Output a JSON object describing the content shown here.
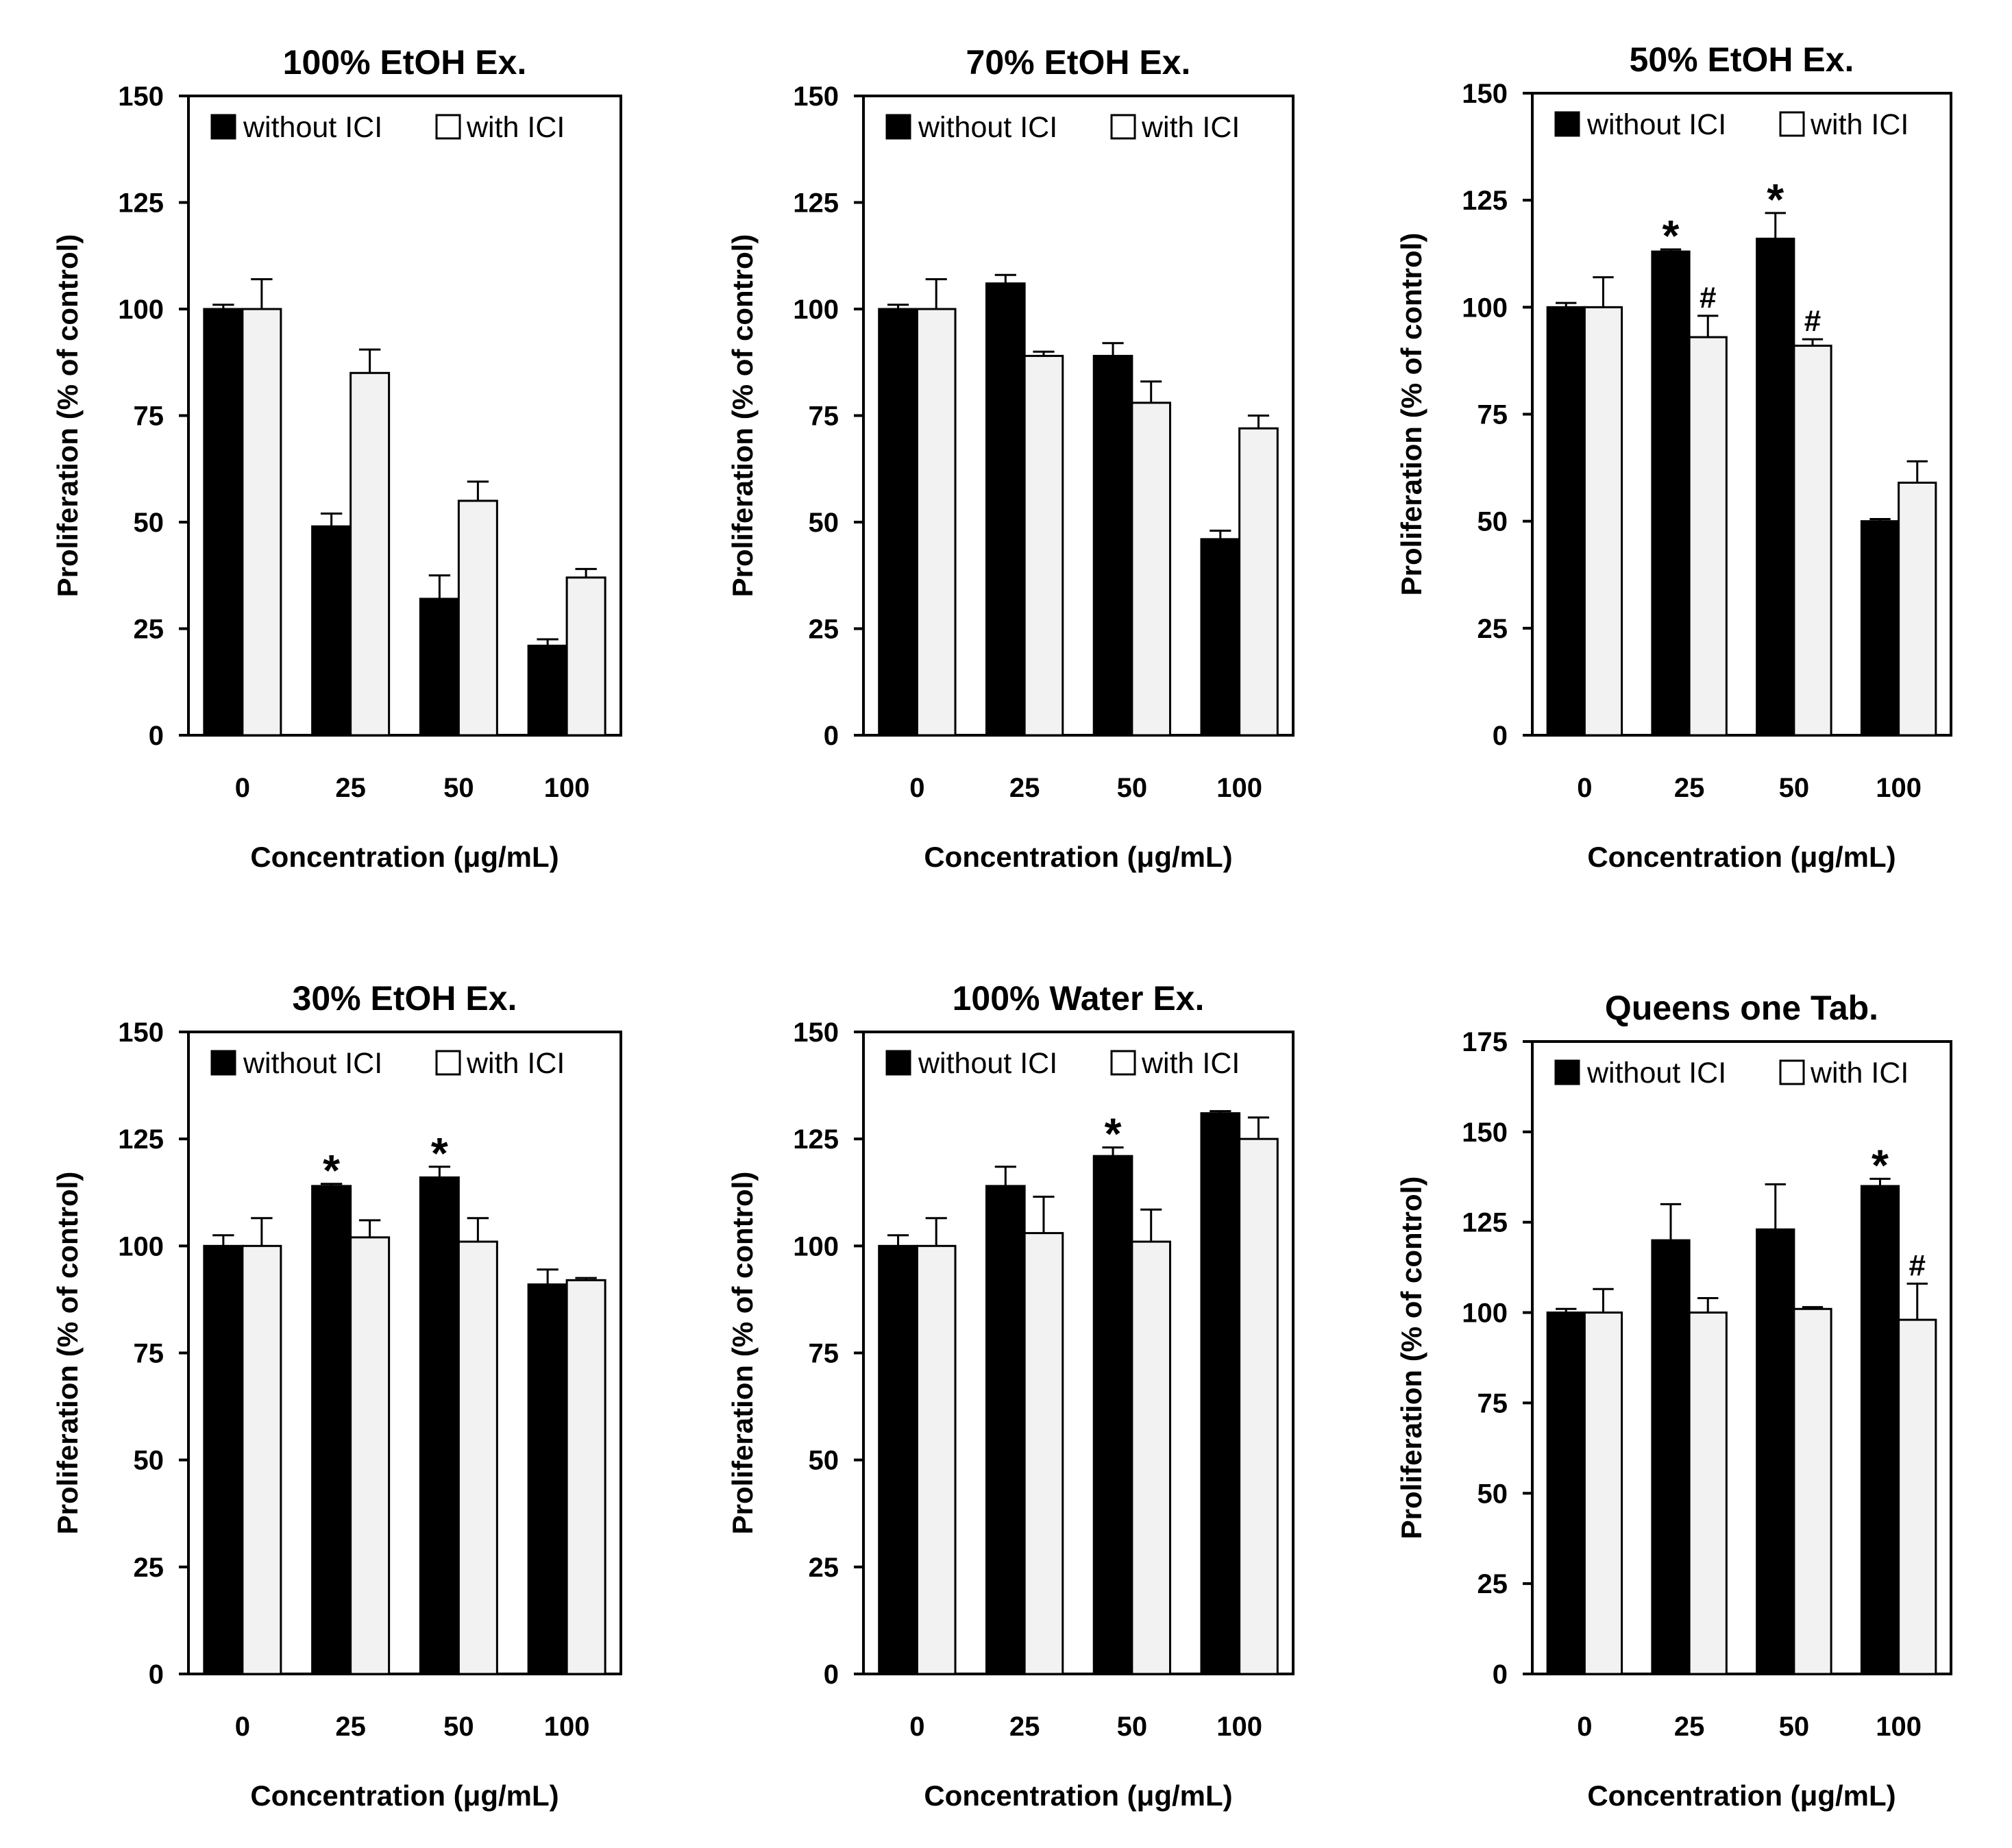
{
  "chart_data": [
    {
      "type": "bar",
      "title": "100% EtOH Ex.",
      "xlabel": "Concentration (μg/mL)",
      "ylabel": "Proliferation (% of control)",
      "ylim": [
        0,
        150
      ],
      "yticks": [
        "0",
        "25",
        "50",
        "75",
        "100",
        "125",
        "150"
      ],
      "categories": [
        "0",
        "25",
        "50",
        "100"
      ],
      "legend": "top-left",
      "series": [
        {
          "name": "without ICI",
          "color": "#000000",
          "values": [
            100,
            49,
            32,
            21
          ],
          "errors": [
            1,
            3,
            5.5,
            1.5
          ],
          "marks": [
            "",
            "",
            "",
            ""
          ]
        },
        {
          "name": "with ICI",
          "color": "#f2f2f2",
          "values": [
            100,
            85,
            55,
            37
          ],
          "errors": [
            7,
            5.5,
            4.5,
            2
          ],
          "marks": [
            "",
            "",
            "",
            ""
          ]
        }
      ]
    },
    {
      "type": "bar",
      "title": "70% EtOH Ex.",
      "xlabel": "Concentration (μg/mL)",
      "ylabel": "Proliferation (% of control)",
      "ylim": [
        0,
        150
      ],
      "yticks": [
        "0",
        "25",
        "50",
        "75",
        "100",
        "125",
        "150"
      ],
      "categories": [
        "0",
        "25",
        "50",
        "100"
      ],
      "legend": "top-left",
      "series": [
        {
          "name": "without ICI",
          "color": "#000000",
          "values": [
            100,
            106,
            89,
            46
          ],
          "errors": [
            1,
            2,
            3,
            2
          ],
          "marks": [
            "",
            "",
            "",
            ""
          ]
        },
        {
          "name": "with ICI",
          "color": "#f2f2f2",
          "values": [
            100,
            89,
            78,
            72
          ],
          "errors": [
            7,
            1,
            5,
            3
          ],
          "marks": [
            "",
            "",
            "",
            ""
          ]
        }
      ]
    },
    {
      "type": "bar",
      "title": "50% EtOH Ex.",
      "xlabel": "Concentration (μg/mL)",
      "ylabel": "Proliferation (% of control)",
      "ylim": [
        0,
        150
      ],
      "yticks": [
        "0",
        "25",
        "50",
        "75",
        "100",
        "125",
        "150"
      ],
      "categories": [
        "0",
        "25",
        "50",
        "100"
      ],
      "legend": "top-left",
      "series": [
        {
          "name": "without ICI",
          "color": "#000000",
          "values": [
            100,
            113,
            116,
            50
          ],
          "errors": [
            1,
            0.5,
            6,
            0.5
          ],
          "marks": [
            "",
            "*",
            "*",
            ""
          ]
        },
        {
          "name": "with ICI",
          "color": "#f2f2f2",
          "values": [
            100,
            93,
            91,
            59
          ],
          "errors": [
            7,
            5,
            1.5,
            5
          ],
          "marks": [
            "",
            "#",
            "#",
            ""
          ]
        }
      ]
    },
    {
      "type": "bar",
      "title": "30% EtOH Ex.",
      "xlabel": "Concentration (μg/mL)",
      "ylabel": "Proliferation (% of control)",
      "ylim": [
        0,
        150
      ],
      "yticks": [
        "0",
        "25",
        "50",
        "75",
        "100",
        "125",
        "150"
      ],
      "categories": [
        "0",
        "25",
        "50",
        "100"
      ],
      "legend": "top-left",
      "series": [
        {
          "name": "without ICI",
          "color": "#000000",
          "values": [
            100,
            114,
            116,
            91
          ],
          "errors": [
            2.5,
            0.5,
            2.5,
            3.5
          ],
          "marks": [
            "",
            "*",
            "*",
            ""
          ]
        },
        {
          "name": "with ICI",
          "color": "#f2f2f2",
          "values": [
            100,
            102,
            101,
            92
          ],
          "errors": [
            6.5,
            4,
            5.5,
            0.5
          ],
          "marks": [
            "",
            "",
            "",
            ""
          ]
        }
      ]
    },
    {
      "type": "bar",
      "title": "100% Water Ex.",
      "xlabel": "Concentration (μg/mL)",
      "ylabel": "Proliferation (% of control)",
      "ylim": [
        0,
        150
      ],
      "yticks": [
        "0",
        "25",
        "50",
        "75",
        "100",
        "125",
        "150"
      ],
      "categories": [
        "0",
        "25",
        "50",
        "100"
      ],
      "legend": "top-left",
      "series": [
        {
          "name": "without ICI",
          "color": "#000000",
          "values": [
            100,
            114,
            121,
            131
          ],
          "errors": [
            2.5,
            4.5,
            2,
            0.5
          ],
          "marks": [
            "",
            "",
            "*",
            ""
          ]
        },
        {
          "name": "with ICI",
          "color": "#f2f2f2",
          "values": [
            100,
            103,
            101,
            125
          ],
          "errors": [
            6.5,
            8.5,
            7.5,
            5
          ],
          "marks": [
            "",
            "",
            "",
            ""
          ]
        }
      ]
    },
    {
      "type": "bar",
      "title": "Queens one Tab.",
      "xlabel": "Concentration (μg/mL)",
      "ylabel": "Proliferation (% of control)",
      "ylim": [
        0,
        175
      ],
      "yticks": [
        "0",
        "25",
        "50",
        "75",
        "100",
        "125",
        "150",
        "175"
      ],
      "categories": [
        "0",
        "25",
        "50",
        "100"
      ],
      "legend": "top-left",
      "series": [
        {
          "name": "without ICI",
          "color": "#000000",
          "values": [
            100,
            120,
            123,
            135
          ],
          "errors": [
            1,
            10,
            12.5,
            2
          ],
          "marks": [
            "",
            "",
            "",
            "*"
          ]
        },
        {
          "name": "with ICI",
          "color": "#f2f2f2",
          "values": [
            100,
            100,
            101,
            98
          ],
          "errors": [
            6.5,
            4,
            0.5,
            10
          ],
          "marks": [
            "",
            "",
            "",
            "#"
          ]
        }
      ]
    }
  ]
}
